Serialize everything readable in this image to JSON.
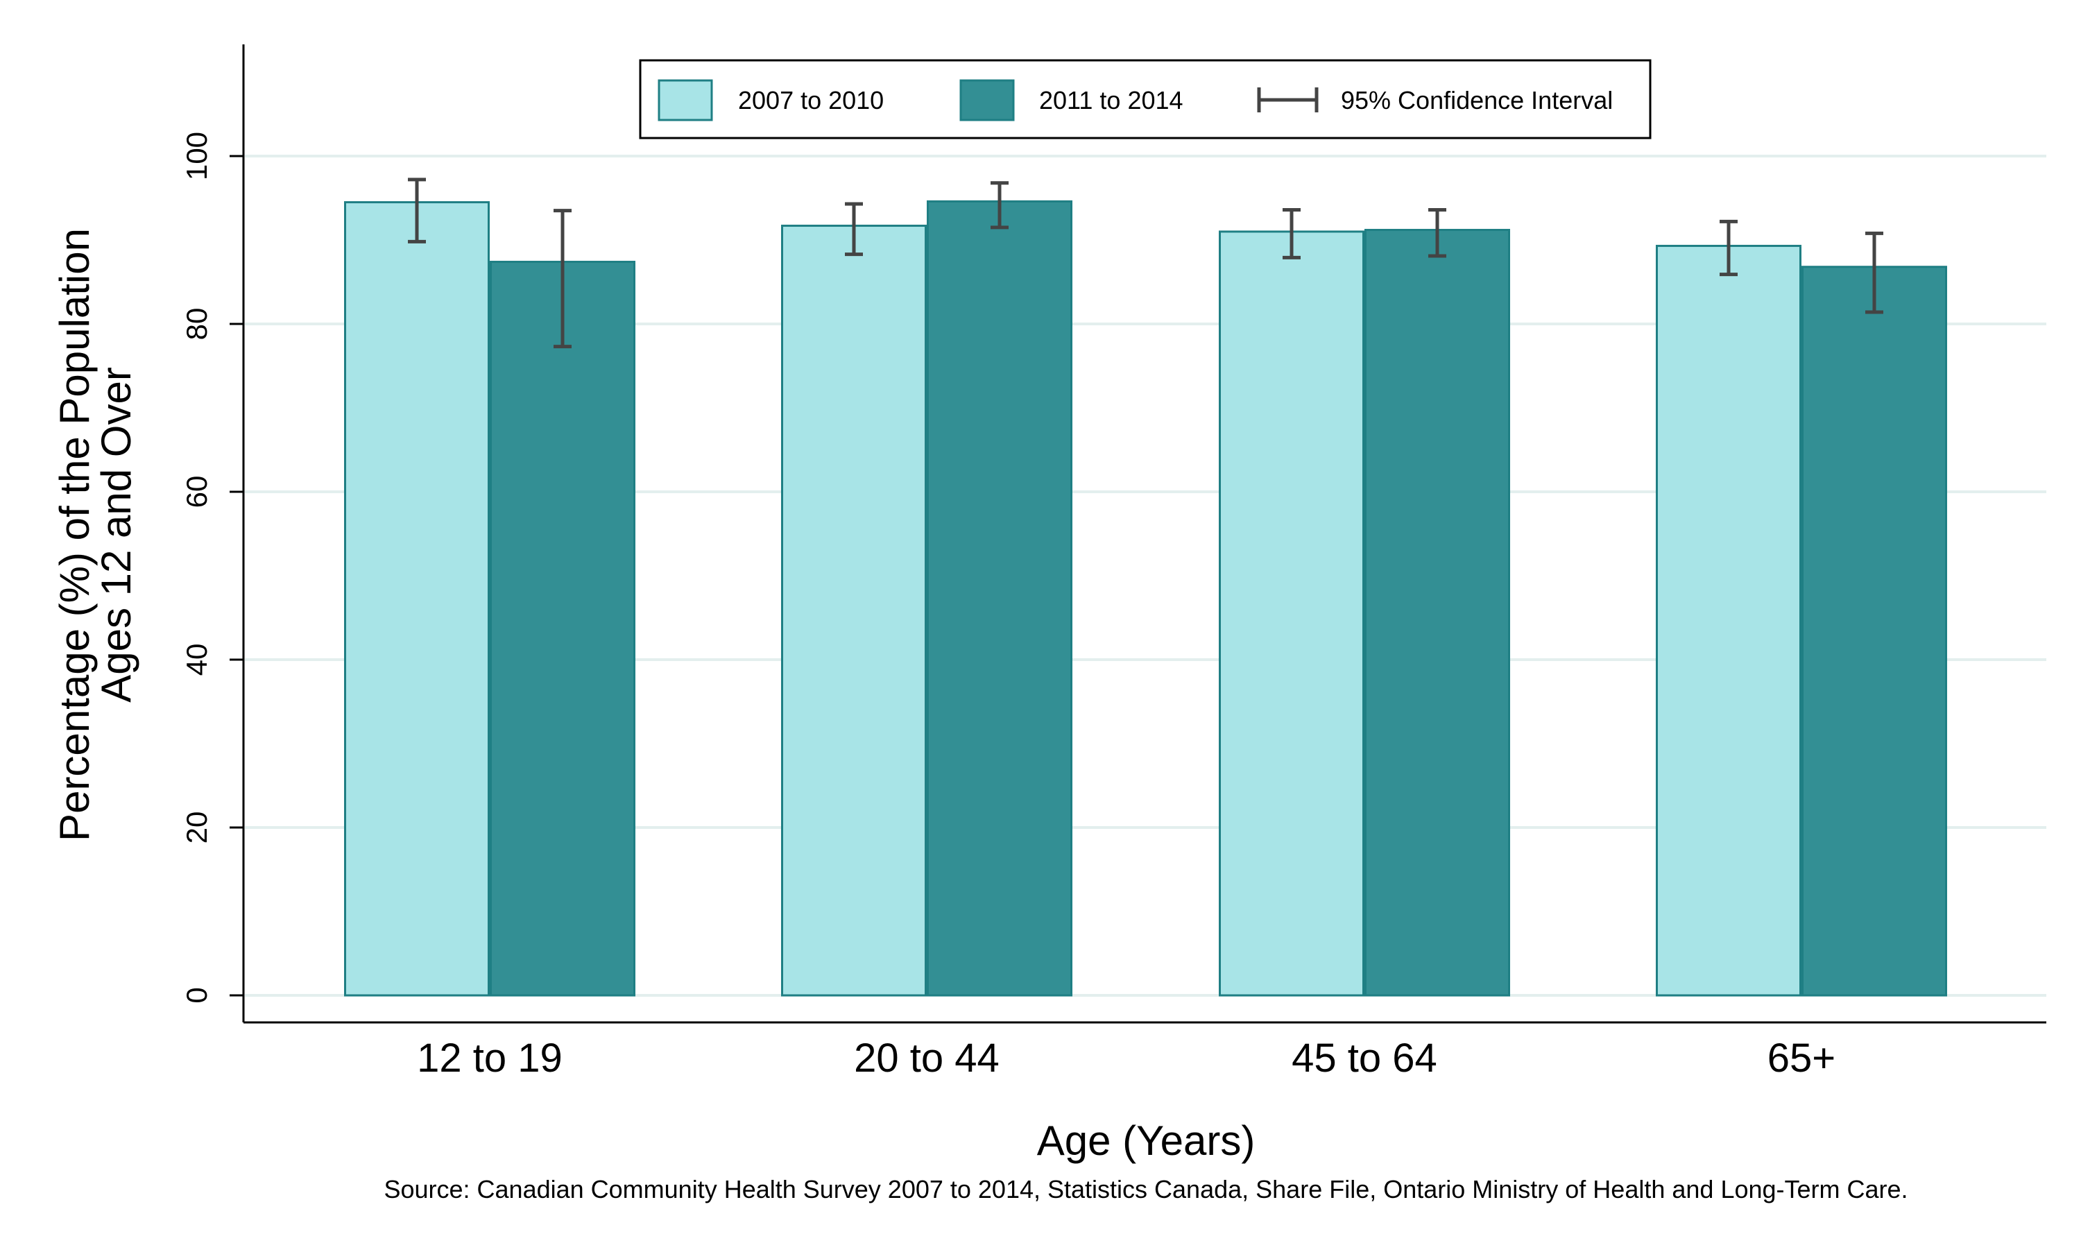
{
  "chart_data": {
    "type": "bar",
    "title": "",
    "xlabel": "Age (Years)",
    "ylabel_lines": [
      "Percentage (%) of the Population",
      "Ages 12 and Over"
    ],
    "ylim": [
      0,
      112
    ],
    "yticks": [
      0,
      20,
      40,
      60,
      80,
      100
    ],
    "grid": true,
    "legend_position": "top-center",
    "categories": [
      "12 to 19",
      "20 to 44",
      "45 to 64",
      "65+"
    ],
    "series": [
      {
        "name": "2007 to 2010",
        "color": "#a8e4e7",
        "values": [
          94.5,
          91.7,
          91.0,
          89.3
        ],
        "ci_low": [
          89.8,
          88.3,
          87.9,
          85.9
        ],
        "ci_high": [
          97.2,
          94.3,
          93.6,
          92.2
        ]
      },
      {
        "name": "2011 to 2014",
        "color": "#338f94",
        "values": [
          87.4,
          94.6,
          91.2,
          86.8
        ],
        "ci_low": [
          77.3,
          91.5,
          88.1,
          81.4
        ],
        "ci_high": [
          93.5,
          96.8,
          93.6,
          90.8
        ]
      }
    ],
    "ci_legend_label": "95% Confidence Interval",
    "source": "Source: Canadian Community Health Survey 2007 to 2014, Statistics Canada, Share File, Ontario Ministry of Health and Long-Term Care."
  },
  "colors": {
    "bar_edge": "#1f7f84",
    "error_bar": "#444444",
    "grid": "#e3efee"
  }
}
